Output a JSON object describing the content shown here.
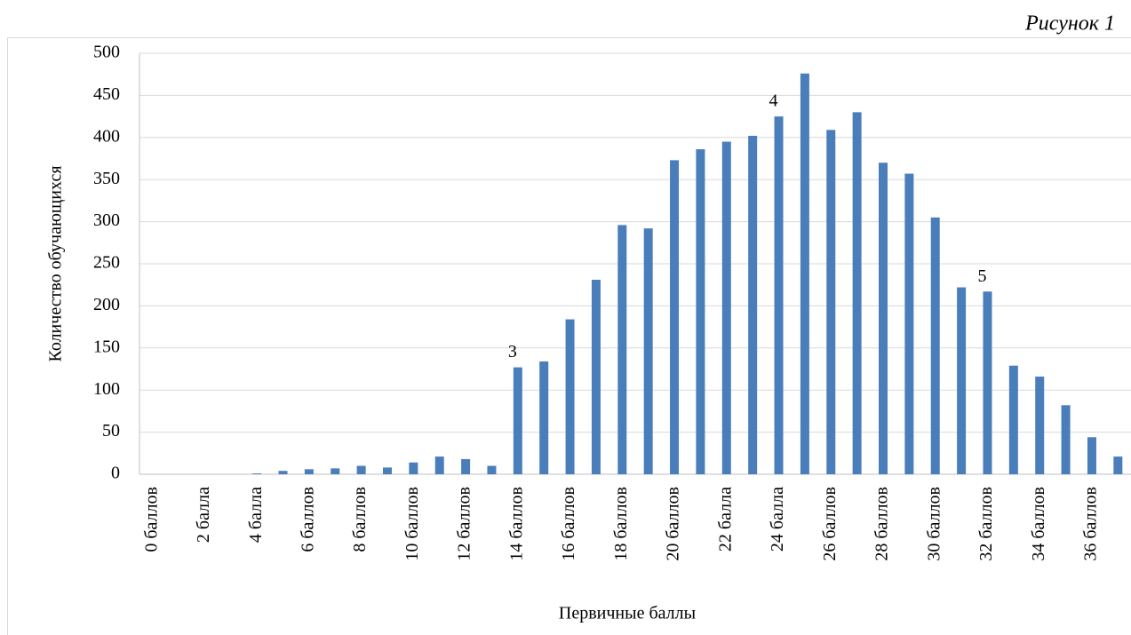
{
  "chart_data": {
    "type": "bar",
    "title": "Рисунок 1",
    "x_label": "Первичные баллы",
    "y_label": "Количество обучающихся",
    "categories": [
      "0 баллов",
      null,
      "2 балла",
      null,
      "4 балла",
      null,
      "6 баллов",
      null,
      "8 баллов",
      null,
      "10 баллов",
      null,
      "12 баллов",
      null,
      "14 баллов",
      null,
      "16 баллов",
      null,
      "18 баллов",
      null,
      "20 баллов",
      null,
      "22 балла",
      null,
      "24 балла",
      null,
      "26 баллов",
      null,
      "28 баллов",
      null,
      "30 баллов",
      null,
      "32 баллов",
      null,
      "34 баллов",
      null,
      "36 баллов",
      null
    ],
    "values": [
      0,
      0,
      0,
      0,
      1,
      4,
      6,
      7,
      10,
      8,
      14,
      21,
      18,
      10,
      127,
      134,
      184,
      231,
      296,
      292,
      373,
      386,
      395,
      402,
      425,
      476,
      409,
      430,
      370,
      357,
      305,
      222,
      217,
      129,
      116,
      82,
      44,
      21
    ],
    "color": "#4a7ebb",
    "ylim": [
      0,
      500
    ],
    "yticks": [
      0,
      50,
      100,
      150,
      200,
      250,
      300,
      350,
      400,
      450,
      500
    ],
    "grid": true,
    "annotations": [
      {
        "text": "3",
        "x": "14 баллов"
      },
      {
        "text": "4",
        "x": "24 балла"
      },
      {
        "text": "5",
        "x": "32 баллов"
      }
    ]
  }
}
